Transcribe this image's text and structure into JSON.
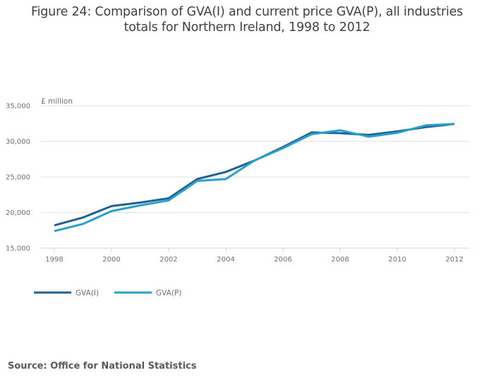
{
  "chart_data": {
    "type": "line",
    "title_lines": [
      "Figure 24: Comparison of GVA(I) and current price GVA(P), all industries",
      "totals for Northern Ireland, 1998 to 2012"
    ],
    "ylabel": "£ million",
    "xlabel": "",
    "x": [
      1998,
      1999,
      2000,
      2001,
      2002,
      2003,
      2004,
      2005,
      2006,
      2007,
      2008,
      2009,
      2010,
      2011,
      2012
    ],
    "xlim": [
      1998,
      2012
    ],
    "ylim": [
      15000,
      35000
    ],
    "x_ticks": [
      "1998",
      "2000",
      "2002",
      "2004",
      "2006",
      "2008",
      "2010",
      "2012"
    ],
    "y_ticks": [
      "15,000",
      "20,000",
      "25,000",
      "30,000",
      "35,000"
    ],
    "y_tick_values": [
      15000,
      20000,
      25000,
      30000,
      35000
    ],
    "grid": "horizontal",
    "legend_position": "bottom-left",
    "series": [
      {
        "name": "GVA(I)",
        "color": "#206095",
        "values": [
          18200,
          19300,
          20900,
          21400,
          22000,
          24700,
          25700,
          27300,
          29200,
          31250,
          31150,
          30900,
          31400,
          32000,
          32450
        ]
      },
      {
        "name": "GVA(P)",
        "color": "#27a0cc",
        "values": [
          17400,
          18400,
          20200,
          21000,
          21700,
          24450,
          24700,
          27300,
          29050,
          31000,
          31550,
          30650,
          31200,
          32250,
          32450
        ]
      }
    ]
  },
  "source": "Source: Office for National Statistics",
  "colors": {
    "gridline": "#e2e2e3",
    "axis": "#ccd6e4",
    "text": "#707071"
  }
}
